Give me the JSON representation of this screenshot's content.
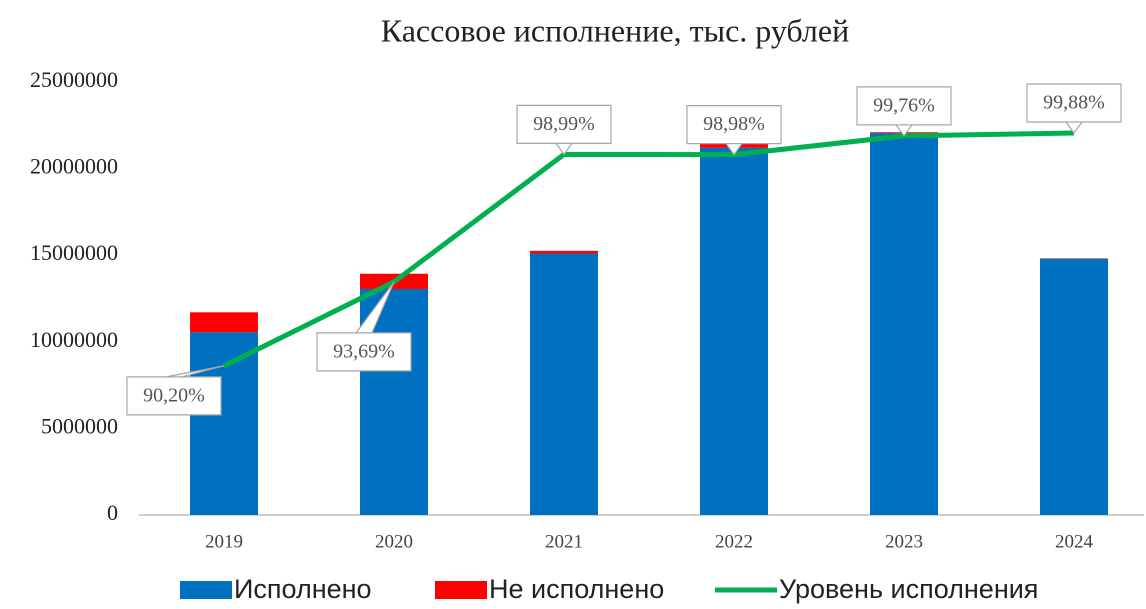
{
  "chart_data": {
    "type": "stacked_bar_line",
    "title": "Кассовое исполнение, тыс. рублей",
    "categories": [
      "2019",
      "2020",
      "2021",
      "2022",
      "2023",
      "2024"
    ],
    "series": [
      {
        "name": "Исполнено",
        "color": "#0070c0",
        "values": [
          10550000,
          13050000,
          15100000,
          21200000,
          22050000,
          14800000
        ]
      },
      {
        "name": "Не исполнено",
        "color": "#ff0000",
        "values": [
          1150000,
          880000,
          150000,
          220000,
          50000,
          20000
        ]
      },
      {
        "name": "Уровень исполнения",
        "color": "#00b050",
        "axis": "y2",
        "values": [
          90.2,
          93.69,
          98.99,
          98.98,
          99.76,
          99.88
        ],
        "value_labels": [
          "90,20%",
          "93,69%",
          "98,99%",
          "98,98%",
          "99,76%",
          "99,88%"
        ]
      }
    ],
    "ylim": [
      0,
      25000000
    ],
    "yticks": [
      0,
      5000000,
      10000000,
      15000000,
      20000000,
      25000000
    ],
    "y2lim": [
      84,
      102
    ],
    "legend": "bottom"
  }
}
